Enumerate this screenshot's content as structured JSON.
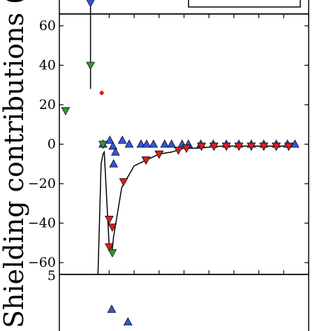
{
  "chart_data": {
    "type": "scatter",
    "ylabel": "Shielding contributions (ppm)",
    "ylim": [
      -66,
      66
    ],
    "y_ticks": [
      60,
      40,
      20,
      0,
      -20,
      -40,
      -60
    ],
    "y_tick_labels": [
      "60",
      "40",
      "20",
      "0",
      "−20",
      "−40",
      "−60"
    ],
    "xlim": [
      0,
      20
    ],
    "x_ticks": [
      4,
      6,
      8,
      10,
      12,
      14,
      16,
      18,
      20
    ],
    "lower_panel_top_tick_label": "5",
    "colors": {
      "blue": "#3355dd",
      "green": "#2e9a2e",
      "red": "#e21b1b",
      "line": "#000000"
    },
    "series": [
      {
        "marker": "triangle-up",
        "color": "blue",
        "points": [
          [
            3.5,
            0
          ],
          [
            4.05,
            2
          ],
          [
            4.3,
            -1
          ],
          [
            4.35,
            -10
          ],
          [
            4.5,
            -4
          ],
          [
            5.05,
            2
          ],
          [
            5.6,
            0
          ],
          [
            6.55,
            0
          ],
          [
            7.0,
            0
          ],
          [
            7.55,
            0
          ],
          [
            8.45,
            0
          ],
          [
            9.0,
            0
          ],
          [
            9.85,
            0
          ],
          [
            10.35,
            0
          ],
          [
            11.35,
            0
          ],
          [
            12.35,
            0
          ],
          [
            13.4,
            0
          ],
          [
            14.4,
            0
          ],
          [
            15.4,
            0
          ],
          [
            16.4,
            0
          ],
          [
            17.4,
            0
          ],
          [
            18.3,
            0
          ],
          [
            18.9,
            0
          ]
        ]
      },
      {
        "marker": "triangle-down",
        "color": "green",
        "points": [
          [
            2.5,
            40
          ],
          [
            0.5,
            17
          ],
          [
            3.5,
            0
          ],
          [
            4.25,
            -55
          ],
          [
            6.95,
            -8
          ],
          [
            8.0,
            -5
          ],
          [
            10.2,
            -2
          ],
          [
            11.4,
            -1
          ],
          [
            12.4,
            -1
          ],
          [
            13.4,
            -1
          ],
          [
            14.4,
            -1
          ],
          [
            15.4,
            -1
          ],
          [
            16.4,
            -1
          ],
          [
            17.4,
            -1
          ],
          [
            18.4,
            -1
          ]
        ]
      },
      {
        "marker": "triangle-down",
        "color": "red",
        "points": [
          [
            4.0,
            -38
          ],
          [
            4.25,
            -42
          ],
          [
            4.0,
            -52
          ],
          [
            5.15,
            -19
          ],
          [
            6.95,
            -8
          ],
          [
            8.0,
            -5
          ],
          [
            9.55,
            -3
          ],
          [
            10.2,
            -2
          ],
          [
            11.4,
            -1
          ],
          [
            12.4,
            -1
          ],
          [
            13.4,
            -1
          ],
          [
            14.4,
            -1
          ],
          [
            15.4,
            -1
          ],
          [
            16.4,
            -1
          ],
          [
            17.4,
            -1
          ],
          [
            18.4,
            -1
          ]
        ]
      },
      {
        "marker": "circle",
        "color": "red",
        "points": [
          [
            3.4,
            26
          ]
        ]
      },
      {
        "marker": "line",
        "color": "line",
        "points": [
          [
            3.1,
            -66
          ],
          [
            3.35,
            -10
          ],
          [
            3.5,
            -5
          ],
          [
            3.6,
            -4
          ],
          [
            4.0,
            -52
          ],
          [
            4.25,
            -53
          ],
          [
            4.35,
            -47
          ],
          [
            5.0,
            -22
          ],
          [
            6.0,
            -11
          ],
          [
            7.0,
            -8
          ],
          [
            8.0,
            -5
          ],
          [
            9.0,
            -4
          ],
          [
            10.0,
            -2
          ],
          [
            11.0,
            -2
          ],
          [
            12.0,
            -1.5
          ],
          [
            13.0,
            -1
          ],
          [
            14.0,
            -1
          ],
          [
            15.0,
            -1
          ],
          [
            16.0,
            -1
          ],
          [
            17.0,
            -1
          ],
          [
            18.0,
            -1
          ],
          [
            19.0,
            -1
          ]
        ]
      }
    ],
    "error_bar": {
      "x": 2.5,
      "y_top": 66,
      "y_bottom": 28,
      "top_marker": "triangle-down",
      "top_marker_color": "blue"
    },
    "lower_panel_points": [
      {
        "marker": "triangle-up",
        "color": "blue",
        "x": 4.2,
        "label_y": "upper"
      },
      {
        "marker": "triangle-up",
        "color": "blue",
        "x": 5.5,
        "label_y": "lower"
      }
    ]
  }
}
